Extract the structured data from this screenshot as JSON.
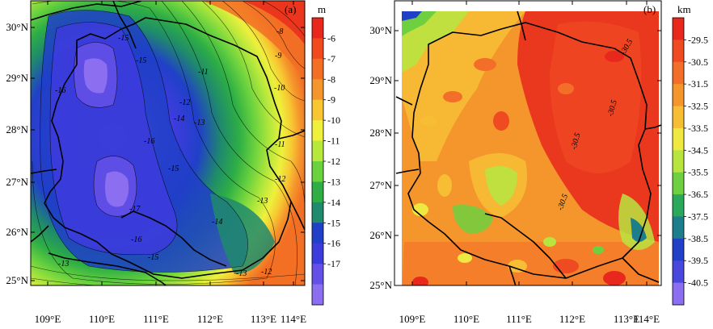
{
  "panels": [
    {
      "id": "a",
      "label": "(a)",
      "unit": "m",
      "lat_labels": [
        "30°N",
        "29°N",
        "28°N",
        "27°N",
        "26°N",
        "25°N"
      ],
      "lon_labels": [
        "109°E",
        "110°E",
        "111°E",
        "112°E",
        "113°E",
        "114°E"
      ],
      "colorbar": {
        "labels": [
          "-6",
          "-7",
          "-8",
          "-9",
          "-10",
          "-11",
          "-12",
          "-13",
          "-14",
          "-15",
          "-16",
          "-17"
        ],
        "colors": [
          "#e8281c",
          "#f24a1e",
          "#f26f24",
          "#f5962c",
          "#f7c632",
          "#eef03c",
          "#b7e83c",
          "#6ad23e",
          "#2eae45",
          "#1f8a6c",
          "#2040c8",
          "#3c3cdc",
          "#6450e6",
          "#8c6ef0"
        ]
      },
      "contour_labels": [
        "-8",
        "-9",
        "-10",
        "-11",
        "-11",
        "-12",
        "-12",
        "-13",
        "-13",
        "-13",
        "-13",
        "-14",
        "-14",
        "-15",
        "-15",
        "-15",
        "-16",
        "-16",
        "-16",
        "-17",
        "-12",
        "-15"
      ]
    },
    {
      "id": "b",
      "label": "(b)",
      "unit": "km",
      "lat_labels": [
        "30°N",
        "29°N",
        "28°N",
        "27°N",
        "26°N",
        "25°N"
      ],
      "lon_labels": [
        "109°E",
        "110°E",
        "111°E",
        "112°E",
        "113°E",
        "114°E"
      ],
      "colorbar": {
        "labels": [
          "-29.5",
          "-30.5",
          "-31.5",
          "-32.5",
          "-33.5",
          "-34.5",
          "-35.5",
          "-36.5",
          "-37.5",
          "-38.5",
          "-39.5",
          "-40.5"
        ],
        "colors": [
          "#e8281c",
          "#f04a22",
          "#f36e28",
          "#f5962c",
          "#f7bd34",
          "#eee840",
          "#b8e440",
          "#6ed040",
          "#2aa85c",
          "#1c7e8a",
          "#2040c8",
          "#4a48dc",
          "#8c6ef0"
        ]
      },
      "contour_labels": [
        "-30.5",
        "-30.5",
        "-30.5",
        "-30.5"
      ]
    }
  ]
}
